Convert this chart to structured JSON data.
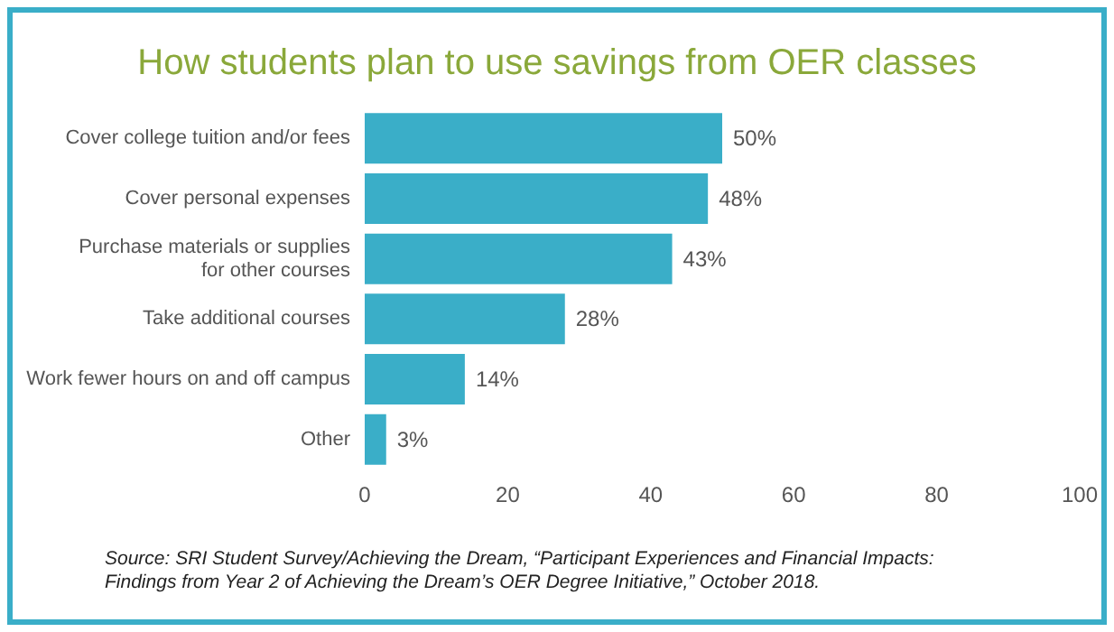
{
  "chart_data": {
    "type": "bar",
    "orientation": "horizontal",
    "title": "How students plan to use savings from OER classes",
    "categories": [
      "Cover college tuition and/or fees",
      "Cover personal expenses",
      "Purchase materials or supplies\nfor other courses",
      "Take additional courses",
      "Work fewer hours on and off campus",
      "Other"
    ],
    "values": [
      50,
      48,
      43,
      28,
      14,
      3
    ],
    "value_labels": [
      "50%",
      "48%",
      "43%",
      "28%",
      "14%",
      "3%"
    ],
    "color": "#3aaec8",
    "xlim": [
      0,
      100
    ],
    "xticks": [
      0,
      20,
      40,
      60,
      80,
      100
    ],
    "grid": false,
    "annotations": [
      "Source: SRI Student Survey/Achieving the Dream, “Participant Experiences and Financial Impacts:\nFindings from Year 2 of Achieving the Dream’s OER Degree Initiative,” October 2018."
    ]
  }
}
